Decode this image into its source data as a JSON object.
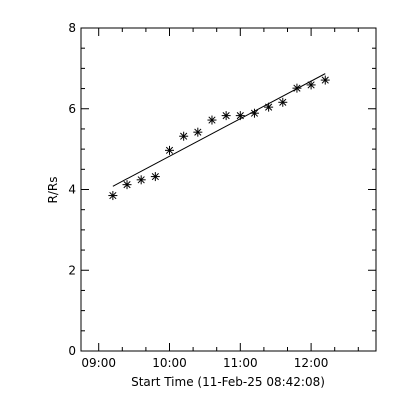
{
  "chart_data": {
    "type": "scatter",
    "title": "",
    "xlabel": "Start Time (11-Feb-25 08:42:08)",
    "ylabel": "R/Rs",
    "xlim": [
      "08:45",
      "12:55"
    ],
    "ylim": [
      0,
      8
    ],
    "x_ticks": [
      "09:00",
      "10:00",
      "11:00",
      "12:00"
    ],
    "y_ticks": [
      "0",
      "2",
      "4",
      "6",
      "8"
    ],
    "grid": false,
    "marker": "asterisk",
    "series": [
      {
        "x": [
          "09:12",
          "09:24",
          "09:36",
          "09:48",
          "10:00",
          "10:12",
          "10:24",
          "10:36",
          "10:48",
          "11:00",
          "11:12",
          "11:24",
          "11:36",
          "11:48",
          "12:00",
          "12:12"
        ],
        "y": [
          3.85,
          4.12,
          4.24,
          4.32,
          4.97,
          5.32,
          5.42,
          5.72,
          5.83,
          5.83,
          5.89,
          6.04,
          6.16,
          6.51,
          6.59,
          6.71
        ]
      }
    ],
    "fit_line": {
      "x": [
        "09:12",
        "12:12"
      ],
      "y": [
        4.08,
        6.87
      ]
    }
  }
}
